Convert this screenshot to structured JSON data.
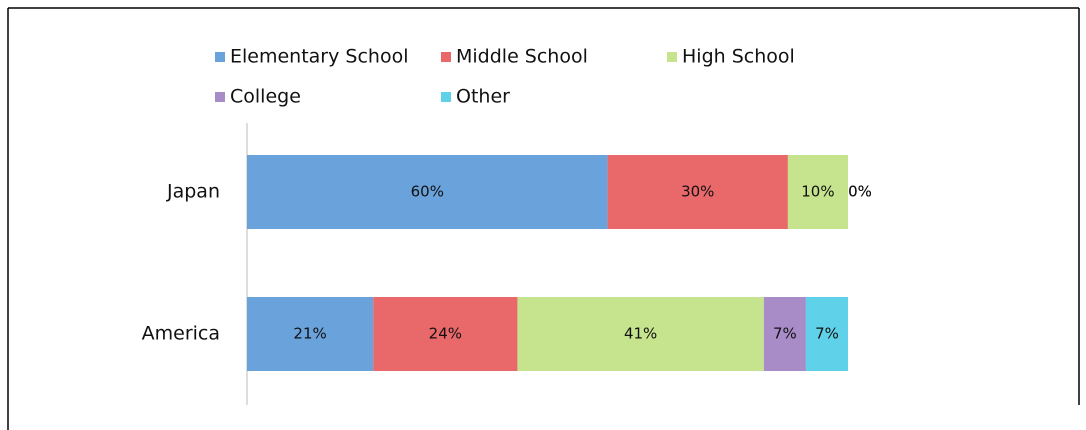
{
  "chart_data": {
    "type": "stacked-bar-horizontal",
    "categories": [
      "Japan",
      "America"
    ],
    "series": [
      {
        "name": "Elementary School",
        "color": "#6aa3dc",
        "values": [
          60,
          21
        ],
        "value_labels": [
          "60%",
          "21%"
        ]
      },
      {
        "name": "Middle School",
        "color": "#e9686a",
        "values": [
          30,
          24
        ],
        "value_labels": [
          "30%",
          "24%"
        ]
      },
      {
        "name": "High School",
        "color": "#c6e38e",
        "values": [
          10,
          41
        ],
        "value_labels": [
          "10%",
          "41%"
        ]
      },
      {
        "name": "College",
        "color": "#a88cc8",
        "values": [
          0,
          7
        ],
        "value_labels": [
          "0%",
          "7%"
        ]
      },
      {
        "name": "Other",
        "color": "#5fd2ea",
        "values": [
          0,
          7
        ],
        "value_labels": [
          "0%",
          "7%"
        ]
      }
    ]
  }
}
